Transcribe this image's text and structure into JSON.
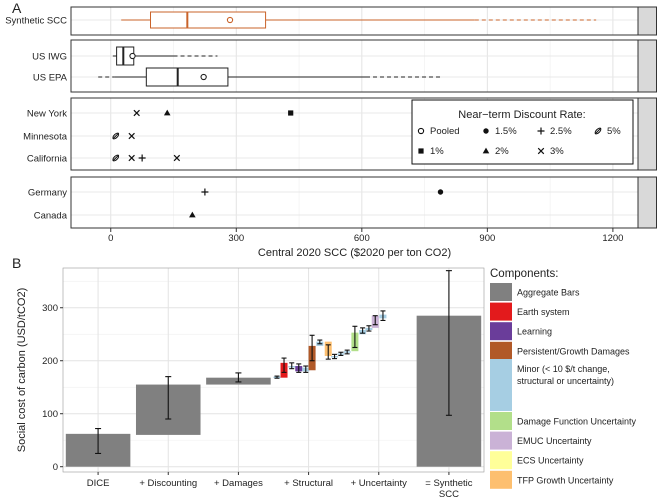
{
  "chart_data": [
    {
      "panel": "A",
      "type": "boxplot",
      "xlabel": "Central 2020 SCC ($2020 per ton CO2)",
      "xlim": [
        -95,
        1260
      ],
      "xticks": [
        0,
        300,
        600,
        900,
        1200
      ],
      "grid": true,
      "groups": [
        {
          "rows": [
            {
              "label": "Synthetic SCC",
              "color": "#c9632a",
              "whisker_low": 25,
              "q1": 95,
              "median": 183,
              "mean": 285,
              "q3": 370,
              "whisker_high": 870,
              "tail_low": 25,
              "tail_high": 1160
            }
          ]
        },
        {
          "rows": [
            {
              "label": "US IWG",
              "color": "#222222",
              "whisker_low": 5,
              "q1": 14,
              "median": 30,
              "mean": 52,
              "q3": 55,
              "whisker_high": 150,
              "tail_low": 5,
              "tail_high": 255
            },
            {
              "label": "US EPA",
              "color": "#222222",
              "whisker_low": 10,
              "q1": 85,
              "median": 160,
              "mean": 222,
              "q3": 280,
              "whisker_high": 610,
              "tail_low": -30,
              "tail_high": 790
            }
          ]
        },
        {
          "rows": [
            {
              "label": "New York",
              "points": [
                {
                  "x": 62,
                  "rate": "3%"
                },
                {
                  "x": 135,
                  "rate": "2%"
                },
                {
                  "x": 430,
                  "rate": "1%"
                }
              ]
            },
            {
              "label": "Minnesota",
              "points": [
                {
                  "x": 12,
                  "rate": "5%"
                },
                {
                  "x": 50,
                  "rate": "3%"
                }
              ]
            },
            {
              "label": "California",
              "points": [
                {
                  "x": 12,
                  "rate": "5%"
                },
                {
                  "x": 50,
                  "rate": "3%"
                },
                {
                  "x": 75,
                  "rate": "2.5%"
                },
                {
                  "x": 158,
                  "rate": "3%"
                }
              ]
            }
          ]
        },
        {
          "rows": [
            {
              "label": "Germany",
              "points": [
                {
                  "x": 225,
                  "rate": "2.5%"
                },
                {
                  "x": 788,
                  "rate": "1.5%"
                }
              ]
            },
            {
              "label": "Canada",
              "points": [
                {
                  "x": 195,
                  "rate": "2%"
                }
              ]
            }
          ]
        }
      ],
      "legend": {
        "title": "Near−term Discount Rate:",
        "placement": "inside-right",
        "items": [
          {
            "symbol": "circle-open",
            "label": "Pooled"
          },
          {
            "symbol": "circle-filled",
            "label": "1.5%"
          },
          {
            "symbol": "plus",
            "label": "2.5%"
          },
          {
            "symbol": "slash-ellipse",
            "label": "5%"
          },
          {
            "symbol": "square",
            "label": "1%"
          },
          {
            "symbol": "triangle",
            "label": "2%"
          },
          {
            "symbol": "cross",
            "label": "3%"
          }
        ]
      }
    },
    {
      "panel": "B",
      "type": "waterfall",
      "ylabel": "Social cost of carbon (USD/tCO2)",
      "ylim": [
        -10,
        375
      ],
      "yticks": [
        0,
        100,
        200,
        300
      ],
      "grid": true,
      "categories": [
        "DICE",
        "+ Discounting",
        "+ Damages",
        "+ Structural",
        "+ Uncertainty",
        "= Synthetic SCC"
      ],
      "aggregate_bars": [
        {
          "category": "DICE",
          "bottom": 0,
          "top": 62,
          "err_low": 25,
          "err_high": 72
        },
        {
          "category": "+ Discounting",
          "bottom": 60,
          "top": 155,
          "err_low": 90,
          "err_high": 170
        },
        {
          "category": "+ Damages",
          "bottom": 155,
          "top": 168,
          "err_low": 160,
          "err_high": 177
        },
        {
          "category": "= Synthetic SCC",
          "bottom": 0,
          "top": 285,
          "err_low": 97,
          "err_high": 370
        }
      ],
      "component_steps": [
        {
          "offset": -0.45,
          "bottom": 168,
          "top": 170,
          "err_low": 167,
          "err_high": 171,
          "component": "Minor (< 10 $/t change, structural or uncertainty)"
        },
        {
          "offset": -0.35,
          "bottom": 168,
          "top": 196,
          "err_low": 178,
          "err_high": 205,
          "component": "Earth system"
        },
        {
          "offset": -0.24,
          "bottom": 190,
          "top": 190,
          "err_low": 185,
          "err_high": 196,
          "component": "Minor (< 10 $/t change, structural or uncertainty)"
        },
        {
          "offset": -0.14,
          "bottom": 180,
          "top": 190,
          "err_low": 178,
          "err_high": 194,
          "component": "Learning"
        },
        {
          "offset": -0.04,
          "bottom": 180,
          "top": 187,
          "err_low": 178,
          "err_high": 190,
          "component": "Minor (< 10 $/t change, structural or uncertainty)"
        },
        {
          "offset": 0.05,
          "bottom": 182,
          "top": 228,
          "err_low": 200,
          "err_high": 248,
          "component": "Persistent/Growth Damages"
        },
        {
          "offset": 0.16,
          "bottom": 228,
          "top": 236,
          "err_low": 232,
          "err_high": 239,
          "component": "Minor (< 10 $/t change, structural or uncertainty)"
        },
        {
          "offset": 0.28,
          "bottom": 209,
          "top": 236,
          "err_low": 203,
          "err_high": 230,
          "component": "TFP Growth Uncertainty"
        },
        {
          "offset": 0.37,
          "bottom": 209,
          "top": 209,
          "err_low": 204,
          "err_high": 212,
          "component": "Minor (< 10 $/t change, structural or uncertainty)"
        },
        {
          "offset": 0.46,
          "bottom": 212,
          "top": 214,
          "err_low": 210,
          "err_high": 216,
          "component": "Minor (< 10 $/t change, structural or uncertainty)"
        },
        {
          "offset": 0.55,
          "bottom": 215,
          "top": 218,
          "err_low": 213,
          "err_high": 220,
          "component": "Minor (< 10 $/t change, structural or uncertainty)"
        },
        {
          "offset": 0.66,
          "bottom": 218,
          "top": 253,
          "err_low": 225,
          "err_high": 265,
          "component": "Damage Function Uncertainty"
        },
        {
          "offset": 0.77,
          "bottom": 250,
          "top": 258,
          "err_low": 252,
          "err_high": 262,
          "component": "Minor (< 10 $/t change, structural or uncertainty)"
        },
        {
          "offset": 0.86,
          "bottom": 258,
          "top": 262,
          "err_low": 256,
          "err_high": 266,
          "component": "Minor (< 10 $/t change, structural or uncertainty)"
        },
        {
          "offset": 0.95,
          "bottom": 262,
          "top": 285,
          "err_low": 268,
          "err_high": 285,
          "component": "EMUC Uncertainty"
        },
        {
          "offset": 1.06,
          "bottom": 280,
          "top": 287,
          "err_low": 276,
          "err_high": 294,
          "component": "Minor (< 10 $/t change, structural or uncertainty)"
        }
      ],
      "legend": {
        "title": "Components:",
        "placement": "right",
        "items": [
          {
            "label": "Aggregate Bars",
            "color": "#808080"
          },
          {
            "label": "Earth system",
            "color": "#e31a1c"
          },
          {
            "label": "Learning",
            "color": "#6a3d9a"
          },
          {
            "label": "Persistent/Growth Damages",
            "color": "#b15928"
          },
          {
            "label": "Minor (< 10 $/t change, structural or uncertainty)",
            "color": "#a6cee3"
          },
          {
            "label": "Damage Function Uncertainty",
            "color": "#b2df8a"
          },
          {
            "label": "EMUC Uncertainty",
            "color": "#cab2d6"
          },
          {
            "label": "ECS Uncertainty",
            "color": "#ffff99"
          },
          {
            "label": "TFP Growth Uncertainty",
            "color": "#fdbf6f"
          }
        ]
      }
    }
  ]
}
